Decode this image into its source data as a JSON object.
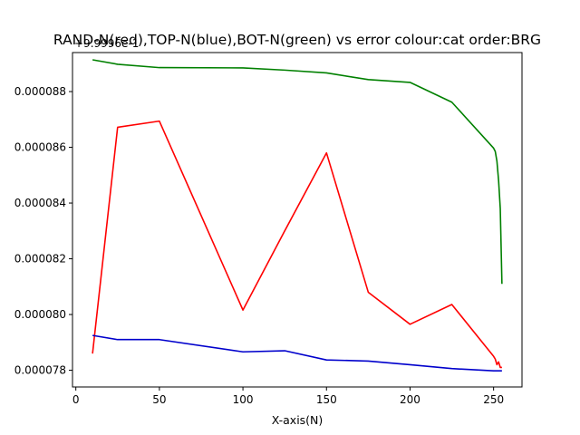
{
  "chart_data": {
    "type": "line",
    "title": "RAND-N(red),TOP-N(blue),BOT-N(green) vs error colour:cat order:BRG",
    "xlabel": "X-axis(N)",
    "ylabel": "",
    "offset_label": "+9.9996e-1",
    "xlim": [
      -2,
      267
    ],
    "ylim": [
      7.74e-05,
      8.94e-05
    ],
    "x_ticks": [
      0,
      50,
      100,
      150,
      200,
      250
    ],
    "x_tick_labels": [
      "0",
      "50",
      "100",
      "150",
      "200",
      "250"
    ],
    "y_ticks": [
      7.8e-05,
      8e-05,
      8.2e-05,
      8.4e-05,
      8.6e-05,
      8.8e-05
    ],
    "y_tick_labels": [
      "0.000078",
      "0.000080",
      "0.000082",
      "0.000084",
      "0.000086",
      "0.000088"
    ],
    "grid": false,
    "series": [
      {
        "color": "#ff0000",
        "points": [
          [
            10,
            7.86e-05
          ],
          [
            25,
            8.672e-05
          ],
          [
            50,
            8.694e-05
          ],
          [
            100,
            8.016e-05
          ],
          [
            125,
            8.3e-05
          ],
          [
            150,
            8.58e-05
          ],
          [
            175,
            8.08e-05
          ],
          [
            200,
            7.965e-05
          ],
          [
            225,
            8.036e-05
          ],
          [
            250,
            7.85e-05
          ],
          [
            251,
            7.84e-05
          ],
          [
            252,
            7.82e-05
          ],
          [
            253,
            7.83e-05
          ],
          [
            254,
            7.81e-05
          ],
          [
            255,
            7.81e-05
          ]
        ]
      },
      {
        "color": "#0000cc",
        "points": [
          [
            10,
            7.925e-05
          ],
          [
            25,
            7.91e-05
          ],
          [
            50,
            7.91e-05
          ],
          [
            100,
            7.866e-05
          ],
          [
            125,
            7.87e-05
          ],
          [
            150,
            7.837e-05
          ],
          [
            175,
            7.833e-05
          ],
          [
            200,
            7.82e-05
          ],
          [
            225,
            7.806e-05
          ],
          [
            250,
            7.798e-05
          ],
          [
            255,
            7.798e-05
          ]
        ]
      },
      {
        "color": "#008000",
        "points": [
          [
            10,
            8.914e-05
          ],
          [
            25,
            8.898e-05
          ],
          [
            50,
            8.886e-05
          ],
          [
            100,
            8.885e-05
          ],
          [
            125,
            8.877e-05
          ],
          [
            150,
            8.867e-05
          ],
          [
            175,
            8.843e-05
          ],
          [
            200,
            8.833e-05
          ],
          [
            225,
            8.762e-05
          ],
          [
            250,
            8.597e-05
          ],
          [
            251,
            8.585e-05
          ],
          [
            252,
            8.55e-05
          ],
          [
            253,
            8.48e-05
          ],
          [
            254,
            8.38e-05
          ],
          [
            255,
            8.11e-05
          ]
        ]
      }
    ]
  }
}
